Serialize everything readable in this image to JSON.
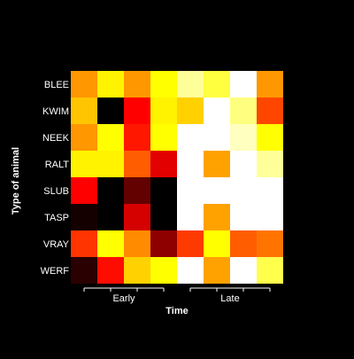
{
  "chart_data": {
    "type": "heatmap",
    "title": "",
    "xlabel": "Time",
    "ylabel": "Type of animal",
    "rows": [
      "BLEE",
      "KWIM",
      "NEEK",
      "RALT",
      "SLUB",
      "TASP",
      "VRAY",
      "WERF"
    ],
    "column_groups": [
      {
        "label": "Early",
        "columns": 4
      },
      {
        "label": "Late",
        "columns": 4
      }
    ],
    "colormap": "heat (black-red-yellow-white)",
    "value_range": [
      0,
      1
    ],
    "values": [
      [
        0.62,
        0.78,
        0.62,
        0.8,
        0.92,
        0.85,
        1.0,
        0.62
      ],
      [
        0.7,
        0.0,
        0.36,
        0.78,
        0.72,
        1.0,
        0.9,
        0.48
      ],
      [
        0.62,
        0.8,
        0.4,
        0.8,
        1.0,
        1.0,
        0.95,
        0.8
      ],
      [
        0.78,
        0.78,
        0.52,
        0.32,
        1.0,
        0.64,
        1.0,
        0.92
      ],
      [
        0.36,
        0.0,
        0.14,
        0.0,
        1.0,
        1.0,
        1.0,
        1.0
      ],
      [
        0.03,
        0.0,
        0.3,
        0.0,
        1.0,
        0.64,
        1.0,
        1.0
      ],
      [
        0.45,
        0.8,
        0.6,
        0.2,
        0.46,
        0.8,
        0.52,
        0.56
      ],
      [
        0.06,
        0.38,
        0.72,
        0.8,
        1.0,
        0.64,
        1.0,
        0.86
      ]
    ]
  }
}
